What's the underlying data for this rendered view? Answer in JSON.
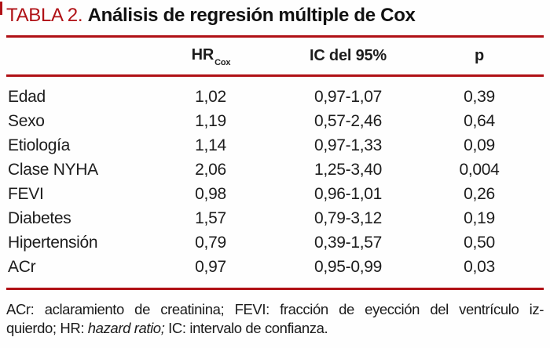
{
  "table": {
    "accent_color": "#b01116",
    "label": "TABLA 2.",
    "title": "Análisis de regresión múltiple de Cox",
    "columns": {
      "variable": "",
      "hr_base": "HR",
      "hr_sub": "Cox",
      "ic": "IC del 95%",
      "p": "p"
    },
    "rows": [
      {
        "name": "Edad",
        "hr": "1,02",
        "ic": "0,97-1,07",
        "p": "0,39"
      },
      {
        "name": "Sexo",
        "hr": "1,19",
        "ic": "0,57-2,46",
        "p": "0,64"
      },
      {
        "name": "Etiología",
        "hr": "1,14",
        "ic": "0,97-1,33",
        "p": "0,09"
      },
      {
        "name": "Clase NYHA",
        "hr": "2,06",
        "ic": "1,25-3,40",
        "p": "0,004"
      },
      {
        "name": "FEVI",
        "hr": "0,98",
        "ic": "0,96-1,01",
        "p": "0,26"
      },
      {
        "name": "Diabetes",
        "hr": "1,57",
        "ic": "0,79-3,12",
        "p": "0,19"
      },
      {
        "name": "Hipertensión",
        "hr": "0,79",
        "ic": "0,39-1,57",
        "p": "0,50"
      },
      {
        "name": "ACr",
        "hr": "0,97",
        "ic": "0,95-0,99",
        "p": "0,03"
      }
    ],
    "footnote": {
      "line1": "ACr: aclaramiento de creatinina; FEVI: fracción de eyección del ventrículo iz-",
      "line2_pre": "quierdo; HR: ",
      "line2_italic": "hazard ratio;",
      "line2_post": " IC: intervalo de confianza."
    }
  },
  "chart_data": {
    "type": "table",
    "title": "TABLA 2. Análisis de regresión múltiple de Cox",
    "columns": [
      "Variable",
      "HR Cox",
      "IC del 95%",
      "p"
    ],
    "rows": [
      [
        "Edad",
        "1,02",
        "0,97-1,07",
        "0,39"
      ],
      [
        "Sexo",
        "1,19",
        "0,57-2,46",
        "0,64"
      ],
      [
        "Etiología",
        "1,14",
        "0,97-1,33",
        "0,09"
      ],
      [
        "Clase NYHA",
        "2,06",
        "1,25-3,40",
        "0,004"
      ],
      [
        "FEVI",
        "0,98",
        "0,96-1,01",
        "0,26"
      ],
      [
        "Diabetes",
        "1,57",
        "0,79-3,12",
        "0,19"
      ],
      [
        "Hipertensión",
        "0,79",
        "0,39-1,57",
        "0,50"
      ],
      [
        "ACr",
        "0,97",
        "0,95-0,99",
        "0,03"
      ]
    ]
  }
}
